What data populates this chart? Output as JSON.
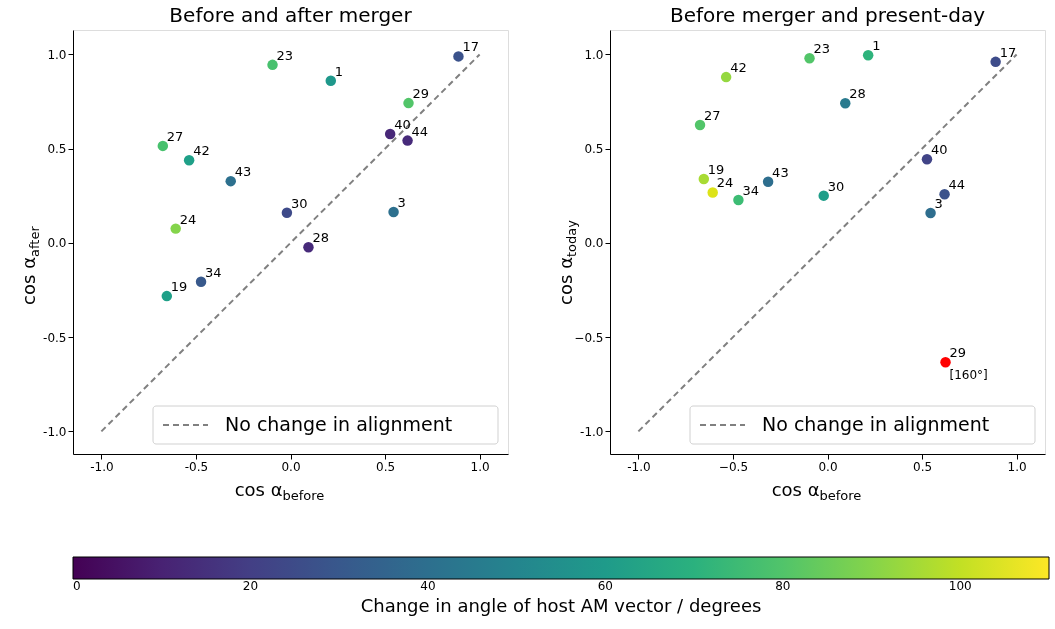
{
  "chart_data": [
    {
      "type": "scatter",
      "title": "Before and after merger",
      "xlabel": "cos α$_{before}$",
      "ylabel": "cos α$_{after}$",
      "clabel": "Change in angle of host AM vector / degrees",
      "clim": [
        0,
        110
      ],
      "cticks": [
        0,
        20,
        40,
        60,
        80,
        100
      ],
      "xlim": [
        -1.15,
        1.15
      ],
      "ylim": [
        -1.12,
        1.13
      ],
      "xticks": [
        {
          "value": -1.0,
          "label": "-1.0"
        },
        {
          "value": -0.5,
          "label": "-0.5"
        },
        {
          "value": 0.0,
          "label": "0.0"
        },
        {
          "value": 0.5,
          "label": "0.5"
        },
        {
          "value": 1.0,
          "label": "1.0"
        }
      ],
      "yticks": [
        {
          "value": -1.0,
          "label": "-1.0"
        },
        {
          "value": -0.5,
          "label": "-0.5"
        },
        {
          "value": 0.0,
          "label": "0.0"
        },
        {
          "value": 0.5,
          "label": "0.5"
        },
        {
          "value": 1.0,
          "label": "1.0"
        }
      ],
      "grid": false,
      "legend": "bottom right",
      "marker": "circle",
      "annotations": [
        {
          "text": "17",
          "x": 0.888,
          "y": 0.99
        },
        {
          "text": "23",
          "x": -0.095,
          "y": 0.945
        },
        {
          "text": "1",
          "x": 0.213,
          "y": 0.861
        },
        {
          "text": "40",
          "x": 0.527,
          "y": 0.578
        },
        {
          "text": "44",
          "x": 0.619,
          "y": 0.543
        },
        {
          "text": "27",
          "x": -0.675,
          "y": 0.515
        },
        {
          "text": "43",
          "x": -0.316,
          "y": 0.328
        },
        {
          "text": "3",
          "x": 0.545,
          "y": 0.164
        },
        {
          "text": "24",
          "x": -0.607,
          "y": 0.076
        },
        {
          "text": "28",
          "x": 0.095,
          "y": -0.023
        },
        {
          "text": "19",
          "x": -0.654,
          "y": -0.282
        },
        {
          "text": "29",
          "x": 0.624,
          "y": 0.742
        },
        {
          "text": "42",
          "x": -0.536,
          "y": 0.439
        },
        {
          "text": "30",
          "x": -0.019,
          "y": 0.16
        },
        {
          "text": "34",
          "x": -0.473,
          "y": -0.206
        }
      ],
      "series": [
        {
          "x": [
            0.888,
            -0.095,
            0.213,
            0.527,
            0.619,
            -0.675,
            -0.316,
            0.545,
            -0.607,
            0.095,
            -0.654,
            0.624,
            -0.536,
            -0.019,
            -0.473
          ],
          "values": [
            0.99,
            0.945,
            0.861,
            0.578,
            0.543,
            0.515,
            0.328,
            0.164,
            0.076,
            -0.023,
            -0.282,
            0.742,
            0.439,
            0.16,
            -0.206
          ],
          "colors": [
            "#3b528b",
            "#48c16e",
            "#1f988b",
            "#482878",
            "#472a7a",
            "#48c16e",
            "#2d708e",
            "#2d708e",
            "#84d44b",
            "#472a7a",
            "#1fa088",
            "#52c569",
            "#1fa088",
            "#3e4a89",
            "#38598c"
          ]
        },
        {
          "type": "line",
          "name": "No change in alignment",
          "color": "#808080",
          "line_style": "dashed",
          "marker": "none",
          "x": [
            -1.0,
            1.0
          ],
          "values": [
            -1.0,
            1.0
          ]
        }
      ]
    },
    {
      "type": "scatter",
      "title": "Before merger and present-day",
      "xlabel": "cos α$_{before}$",
      "ylabel": "cos α$_{today}$",
      "xlim": [
        -1.15,
        1.15
      ],
      "ylim": [
        -1.12,
        1.13
      ],
      "xticks": [
        {
          "value": -1.0,
          "label": "-1.0"
        },
        -0.5,
        {
          "value": 0.0,
          "label": "0.0"
        },
        0.5,
        {
          "value": 1.0,
          "label": "1.0"
        }
      ],
      "yticks": [
        {
          "value": -1.0,
          "label": "-1.0"
        },
        -0.5,
        {
          "value": 0.0,
          "label": "0.0"
        },
        0.5,
        {
          "value": 1.0,
          "label": "1.0"
        }
      ],
      "grid": false,
      "legend": "bottom right",
      "marker": "circle",
      "annotations": [
        {
          "text": "17",
          "x": 0.889,
          "y": 0.961
        },
        {
          "text": "23",
          "x": -0.095,
          "y": 0.98
        },
        {
          "text": "1",
          "x": 0.215,
          "y": 0.996
        },
        {
          "text": "28",
          "x": 0.094,
          "y": 0.741
        },
        {
          "text": "27",
          "x": -0.674,
          "y": 0.626
        },
        {
          "text": "40",
          "x": 0.526,
          "y": 0.444
        },
        {
          "text": "19",
          "x": -0.654,
          "y": 0.339
        },
        {
          "text": "43",
          "x": -0.314,
          "y": 0.325
        },
        {
          "text": "24",
          "x": -0.607,
          "y": 0.268
        },
        {
          "text": "44",
          "x": 0.619,
          "y": 0.258
        },
        {
          "text": "3",
          "x": 0.545,
          "y": 0.159
        },
        {
          "text": "42",
          "x": -0.536,
          "y": 0.88
        },
        {
          "text": "34",
          "x": -0.471,
          "y": 0.228
        },
        {
          "text": "30",
          "x": -0.02,
          "y": 0.251
        },
        {
          "text": "29",
          "x": 0.624,
          "y": -0.633
        },
        {
          "text": "[160°]",
          "x": 0.624,
          "y": -0.633
        }
      ],
      "series": [
        {
          "x": [
            0.889,
            -0.095,
            0.215,
            0.094,
            -0.674,
            0.526,
            -0.654,
            -0.314,
            -0.607,
            0.619,
            0.545,
            -0.536,
            -0.471,
            -0.02
          ],
          "values": [
            0.961,
            0.98,
            0.996,
            0.741,
            0.626,
            0.444,
            0.339,
            0.325,
            0.268,
            0.258,
            0.159,
            0.88,
            0.228,
            0.251
          ],
          "colors": [
            "#3e4c8a",
            "#52c569",
            "#2eb37c",
            "#297a8e",
            "#52c569",
            "#414487",
            "#a8db34",
            "#2e6e8e",
            "#dde318",
            "#3b528b",
            "#2e6e8e",
            "#95d840",
            "#3dbc74",
            "#1f9e89"
          ]
        },
        {
          "color": "#ff0000",
          "x": [
            0.624
          ],
          "values": [
            -0.633
          ]
        },
        {
          "type": "line",
          "name": "No change in alignment",
          "color": "#808080",
          "line_style": "dashed",
          "marker": "none",
          "x": [
            -1.0,
            1.0
          ],
          "values": [
            -1.0,
            1.0
          ]
        }
      ]
    }
  ]
}
